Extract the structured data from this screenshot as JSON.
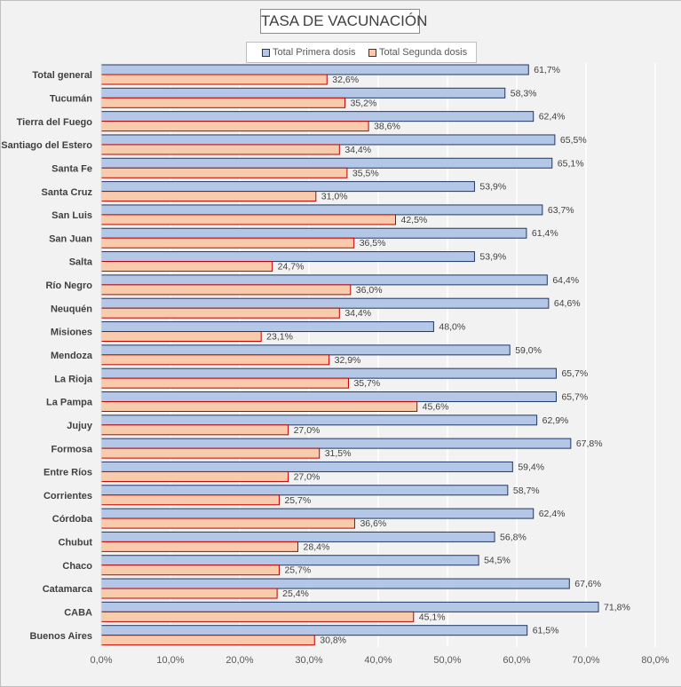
{
  "chart_data": {
    "type": "bar",
    "orientation": "horizontal",
    "title": "TASA DE VACUNACIÓN",
    "categories": [
      "Total general",
      "Tucumán",
      "Tierra del Fuego",
      "Santiago del Estero",
      "Santa Fe",
      "Santa Cruz",
      "San Luis",
      "San Juan",
      "Salta",
      "Río Negro",
      "Neuquén",
      "Misiones",
      "Mendoza",
      "La Rioja",
      "La Pampa",
      "Jujuy",
      "Formosa",
      "Entre Ríos",
      "Corrientes",
      "Córdoba",
      "Chubut",
      "Chaco",
      "Catamarca",
      "CABA",
      "Buenos Aires"
    ],
    "series": [
      {
        "name": "Total Primera dosis",
        "color": "#b4c7e7",
        "border": "#203864",
        "values": [
          61.7,
          58.3,
          62.4,
          65.5,
          65.1,
          53.9,
          63.7,
          61.4,
          53.9,
          64.4,
          64.6,
          48.0,
          59.0,
          65.7,
          65.7,
          62.9,
          67.8,
          59.4,
          58.7,
          62.4,
          56.8,
          54.5,
          67.6,
          71.8,
          61.5
        ],
        "labels": [
          "61,7%",
          "58,3%",
          "62,4%",
          "65,5%",
          "65,1%",
          "53,9%",
          "63,7%",
          "61,4%",
          "53,9%",
          "64,4%",
          "64,6%",
          "48,0%",
          "59,0%",
          "65,7%",
          "65,7%",
          "62,9%",
          "67,8%",
          "59,4%",
          "58,7%",
          "62,4%",
          "56,8%",
          "54,5%",
          "67,6%",
          "71,8%",
          "61,5%"
        ]
      },
      {
        "name": "Total Segunda dosis",
        "color": "#f8cbad",
        "border": "#c00000",
        "values": [
          32.6,
          35.2,
          38.6,
          34.4,
          35.5,
          31.0,
          42.5,
          36.5,
          24.7,
          36.0,
          34.4,
          23.1,
          32.9,
          35.7,
          45.6,
          27.0,
          31.5,
          27.0,
          25.7,
          36.6,
          28.4,
          25.7,
          25.4,
          45.1,
          30.8
        ],
        "labels": [
          "32,6%",
          "35,2%",
          "38,6%",
          "34,4%",
          "35,5%",
          "31,0%",
          "42,5%",
          "36,5%",
          "24,7%",
          "36,0%",
          "34,4%",
          "23,1%",
          "32,9%",
          "35,7%",
          "45,6%",
          "27,0%",
          "31,5%",
          "27,0%",
          "25,7%",
          "36,6%",
          "28,4%",
          "25,7%",
          "25,4%",
          "45,1%",
          "30,8%"
        ]
      }
    ],
    "xlim": [
      0,
      80
    ],
    "xticks": [
      "0,0%",
      "10,0%",
      "20,0%",
      "30,0%",
      "40,0%",
      "50,0%",
      "60,0%",
      "70,0%",
      "80,0%"
    ],
    "grid": true,
    "legend_position": "top"
  }
}
